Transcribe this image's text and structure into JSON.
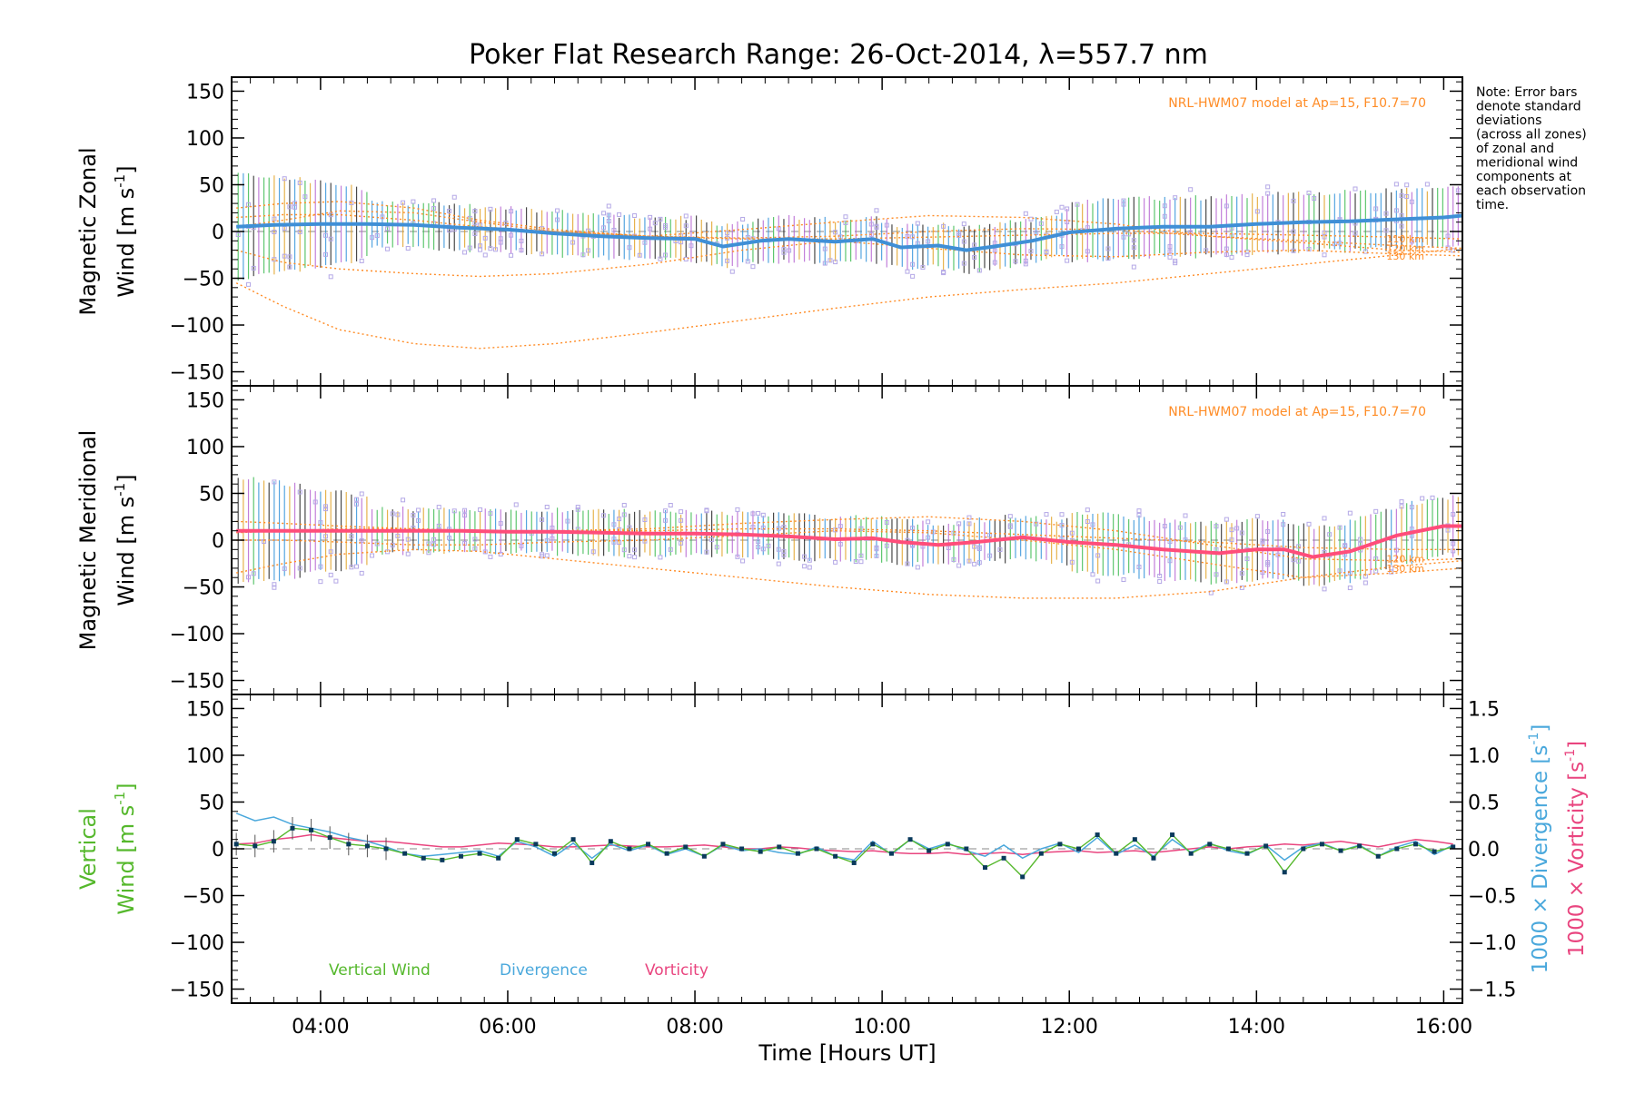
{
  "title_pre": "Poker Flat Research Range: 26-Oct-2014, ",
  "title_lambda": "λ",
  "title_post": "=557.7 nm",
  "note": [
    "Note: Error bars",
    "denote standard",
    "deviations",
    "(across all zones)",
    "of zonal and",
    "meridional wind",
    "components at",
    "each observation",
    "time."
  ],
  "xlabel": "Time [Hours UT]",
  "colors": {
    "zonal": "#3f8fd6",
    "meridional": "#ff4d7a",
    "scatter": "#b4a8e6",
    "model": "#ff8c26",
    "vertical": "#55b82c",
    "divergence": "#4aa8dc",
    "vorticity": "#e9457f",
    "points": "#0a3a5c"
  },
  "chart_data": [
    {
      "type": "line",
      "panel": "zonal",
      "ylabel_line1": "Magnetic Zonal",
      "ylabel_line2": "Wind [m s",
      "ylabel_sup": "-1",
      "ylabel_close": "]",
      "model_label": "NRL-HWM07 model at Ap=15, F10.7=70",
      "xlim": [
        3.05,
        16.2
      ],
      "ylim": [
        -165,
        165
      ],
      "yticks": [
        -150,
        -100,
        -50,
        0,
        50,
        100,
        150
      ],
      "xticks": [
        4,
        6,
        8,
        10,
        12,
        14,
        16
      ],
      "xtick_labels": [
        "04:00",
        "06:00",
        "08:00",
        "10:00",
        "12:00",
        "14:00",
        "16:00"
      ],
      "series": [
        {
          "role": "mean",
          "x": [
            3.1,
            3.5,
            4.0,
            4.5,
            5.0,
            5.5,
            6.0,
            6.5,
            7.0,
            7.5,
            8.0,
            8.3,
            8.7,
            9.0,
            9.5,
            9.9,
            10.2,
            10.6,
            10.9,
            11.2,
            11.6,
            12.0,
            12.5,
            13.0,
            13.5,
            14.0,
            14.5,
            15.0,
            15.5,
            16.0,
            16.2
          ],
          "values": [
            5,
            7,
            8,
            8,
            7,
            4,
            2,
            -2,
            -5,
            -7,
            -8,
            -16,
            -10,
            -8,
            -11,
            -8,
            -17,
            -15,
            -20,
            -16,
            -10,
            -1,
            3,
            5,
            5,
            8,
            10,
            11,
            13,
            15,
            17
          ]
        },
        {
          "role": "model",
          "label": "",
          "x": [
            3.1,
            3.6,
            4.2,
            5.0,
            5.7,
            6.5,
            7.5,
            8.5,
            9.5,
            10.5,
            11.5,
            12.5,
            13.5,
            14.5,
            15.5,
            16.2
          ],
          "values": [
            -55,
            -80,
            -105,
            -120,
            -125,
            -120,
            -108,
            -95,
            -82,
            -70,
            -62,
            -55,
            -45,
            -35,
            -25,
            -18
          ]
        },
        {
          "role": "model",
          "label": "130 km",
          "x": [
            3.1,
            3.6,
            4.2,
            5.0,
            5.7,
            6.5,
            7.5,
            8.5,
            9.5,
            10.5,
            11.5,
            12.5,
            13.5,
            14.5,
            15.5,
            16.2
          ],
          "values": [
            -20,
            -33,
            -40,
            -45,
            -48,
            -45,
            -35,
            -20,
            -10,
            -18,
            -25,
            -27,
            -22,
            -20,
            -24,
            -26
          ]
        },
        {
          "role": "model",
          "label": "",
          "x": [
            3.1,
            3.6,
            4.2,
            5.0,
            5.7,
            6.5,
            7.5,
            8.5,
            9.5,
            10.5,
            11.5,
            12.5,
            13.5,
            14.5,
            15.5,
            16.2
          ],
          "values": [
            5,
            12,
            22,
            20,
            10,
            0,
            -5,
            2,
            10,
            17,
            15,
            8,
            -5,
            -12,
            -20,
            -22
          ]
        },
        {
          "role": "model",
          "label": "120 km",
          "x": [
            3.1,
            3.6,
            4.2,
            5.0,
            5.7,
            6.5,
            7.5,
            8.5,
            9.5,
            10.5,
            11.5,
            12.5,
            13.5,
            14.5,
            15.5,
            16.2
          ],
          "values": [
            25,
            30,
            32,
            25,
            12,
            2,
            -5,
            -7,
            -5,
            0,
            3,
            2,
            -5,
            -10,
            -15,
            -18
          ]
        },
        {
          "role": "model",
          "label": "110 km",
          "x": [
            3.1,
            3.6,
            4.2,
            5.0,
            5.7,
            6.5,
            7.5,
            8.5,
            9.5,
            10.5,
            11.5,
            12.5,
            13.5,
            14.5,
            15.5,
            16.2
          ],
          "values": [
            15,
            18,
            18,
            12,
            5,
            0,
            -5,
            -8,
            -8,
            -6,
            -4,
            -2,
            -2,
            -4,
            -6,
            -8
          ]
        }
      ]
    },
    {
      "type": "line",
      "panel": "meridional",
      "ylabel_line1": "Magnetic Meridional",
      "ylabel_line2": "Wind [m s",
      "ylabel_sup": "-1",
      "ylabel_close": "]",
      "model_label": "NRL-HWM07 model at Ap=15, F10.7=70",
      "xlim": [
        3.05,
        16.2
      ],
      "ylim": [
        -165,
        165
      ],
      "yticks": [
        -150,
        -100,
        -50,
        0,
        50,
        100,
        150
      ],
      "series": [
        {
          "role": "mean",
          "x": [
            3.1,
            3.5,
            4.0,
            4.5,
            5.0,
            5.5,
            6.0,
            6.5,
            7.0,
            7.5,
            8.0,
            8.5,
            9.0,
            9.5,
            9.9,
            10.2,
            10.6,
            11.0,
            11.5,
            12.0,
            12.5,
            13.0,
            13.3,
            13.6,
            14.0,
            14.3,
            14.6,
            15.0,
            15.5,
            16.0,
            16.2
          ],
          "values": [
            10,
            10,
            10,
            10,
            10,
            10,
            9,
            9,
            8,
            7,
            7,
            6,
            4,
            1,
            2,
            -2,
            -5,
            -2,
            3,
            -2,
            -5,
            -10,
            -12,
            -14,
            -10,
            -10,
            -18,
            -12,
            5,
            15,
            15
          ]
        },
        {
          "role": "model",
          "label": "",
          "x": [
            3.1,
            3.6,
            4.2,
            5.0,
            5.7,
            6.5,
            7.5,
            8.5,
            9.5,
            10.5,
            11.5,
            12.5,
            13.5,
            14.5,
            15.5,
            16.2
          ],
          "values": [
            -35,
            -25,
            -15,
            -10,
            -12,
            -20,
            -30,
            -40,
            -50,
            -58,
            -62,
            -62,
            -55,
            -40,
            -28,
            -22
          ]
        },
        {
          "role": "model",
          "label": "130 km",
          "x": [
            3.1,
            3.6,
            4.2,
            5.0,
            5.7,
            6.5,
            7.5,
            8.5,
            9.5,
            10.5,
            11.5,
            12.5,
            13.5,
            14.5,
            15.5,
            16.2
          ],
          "values": [
            0,
            0,
            -2,
            -5,
            -5,
            -2,
            0,
            5,
            10,
            8,
            0,
            -10,
            -25,
            -40,
            -35,
            -30
          ]
        },
        {
          "role": "model",
          "label": "120 km",
          "x": [
            3.1,
            3.6,
            4.2,
            5.0,
            5.7,
            6.5,
            7.5,
            8.5,
            9.5,
            10.5,
            11.5,
            12.5,
            13.5,
            14.5,
            15.5,
            16.2
          ],
          "values": [
            20,
            18,
            15,
            12,
            10,
            10,
            12,
            18,
            22,
            25,
            20,
            10,
            -5,
            -20,
            -22,
            -20
          ]
        },
        {
          "role": "model",
          "label": "",
          "x": [
            3.1,
            3.6,
            4.2,
            5.0,
            5.7,
            6.5,
            7.5,
            8.5,
            9.5,
            10.5,
            11.5,
            12.5,
            13.5,
            14.5,
            15.5,
            16.2
          ],
          "values": [
            8,
            10,
            12,
            12,
            10,
            10,
            10,
            12,
            12,
            10,
            6,
            2,
            -2,
            -8,
            -10,
            -10
          ]
        }
      ]
    },
    {
      "type": "line",
      "panel": "vertical",
      "ylabel_line1": "Vertical",
      "ylabel_line2": "Wind [m s",
      "ylabel_sup": "-1",
      "ylabel_close": "]",
      "y2label_div_pre": "1000 × Divergence [s",
      "y2label_vort_pre": "1000 × Vorticity [s",
      "y2label_sup": "-1",
      "y2label_close": "]",
      "ylim": [
        -165,
        165
      ],
      "yticks": [
        -150,
        -100,
        -50,
        0,
        50,
        100,
        150
      ],
      "y2lim": [
        -1.65,
        1.65
      ],
      "y2ticks": [
        -1.5,
        -1.0,
        -0.5,
        0.0,
        0.5,
        1.0,
        1.5
      ],
      "y2tick_labels": [
        "−1.5",
        "−1.0",
        "−0.5",
        "0.0",
        "0.5",
        "1.0",
        "1.5"
      ],
      "legend": [
        "Vertical Wind",
        "Divergence",
        "Vorticity"
      ],
      "series": [
        {
          "name": "Vertical Wind",
          "x": [
            3.1,
            3.3,
            3.5,
            3.7,
            3.9,
            4.1,
            4.3,
            4.5,
            4.7,
            4.9,
            5.1,
            5.3,
            5.5,
            5.7,
            5.9,
            6.1,
            6.3,
            6.5,
            6.7,
            6.9,
            7.1,
            7.3,
            7.5,
            7.7,
            7.9,
            8.1,
            8.3,
            8.5,
            8.7,
            8.9,
            9.1,
            9.3,
            9.5,
            9.7,
            9.9,
            10.1,
            10.3,
            10.5,
            10.7,
            10.9,
            11.1,
            11.3,
            11.5,
            11.7,
            11.9,
            12.1,
            12.3,
            12.5,
            12.7,
            12.9,
            13.1,
            13.3,
            13.5,
            13.7,
            13.9,
            14.1,
            14.3,
            14.5,
            14.7,
            14.9,
            15.1,
            15.3,
            15.5,
            15.7,
            15.9,
            16.1
          ],
          "values": [
            5,
            3,
            8,
            22,
            20,
            12,
            5,
            3,
            0,
            -5,
            -10,
            -12,
            -8,
            -5,
            -10,
            10,
            5,
            -5,
            10,
            -15,
            8,
            0,
            5,
            -5,
            2,
            -8,
            5,
            0,
            -3,
            2,
            -5,
            0,
            -8,
            -15,
            5,
            -5,
            10,
            -2,
            5,
            0,
            -20,
            -10,
            -30,
            -5,
            5,
            0,
            15,
            -5,
            10,
            -10,
            15,
            -5,
            5,
            0,
            -5,
            3,
            -25,
            0,
            5,
            -2,
            3,
            -8,
            0,
            5,
            -3,
            2
          ]
        },
        {
          "name": "Divergence",
          "x": [
            3.1,
            3.3,
            3.5,
            3.7,
            3.9,
            4.1,
            4.3,
            4.5,
            4.7,
            4.9,
            5.1,
            5.3,
            5.5,
            5.7,
            5.9,
            6.1,
            6.3,
            6.5,
            6.7,
            6.9,
            7.1,
            7.3,
            7.5,
            7.7,
            7.9,
            8.1,
            8.3,
            8.5,
            8.7,
            8.9,
            9.1,
            9.3,
            9.5,
            9.7,
            9.9,
            10.1,
            10.3,
            10.5,
            10.7,
            10.9,
            11.1,
            11.3,
            11.5,
            11.7,
            11.9,
            12.1,
            12.3,
            12.5,
            12.7,
            12.9,
            13.1,
            13.3,
            13.5,
            13.7,
            13.9,
            14.1,
            14.3,
            14.5,
            14.7,
            14.9,
            15.1,
            15.3,
            15.5,
            15.7,
            15.9,
            16.1
          ],
          "values": [
            0.38,
            0.3,
            0.34,
            0.26,
            0.22,
            0.18,
            0.12,
            0.08,
            0.02,
            -0.05,
            -0.08,
            -0.06,
            -0.04,
            -0.02,
            -0.08,
            0.08,
            0.02,
            -0.08,
            0.06,
            -0.1,
            0.05,
            -0.02,
            0.04,
            -0.06,
            0.0,
            -0.08,
            0.04,
            -0.02,
            0.0,
            -0.04,
            -0.06,
            0.02,
            -0.08,
            -0.12,
            0.08,
            -0.06,
            0.1,
            0.0,
            0.06,
            -0.02,
            -0.08,
            0.04,
            -0.1,
            0.0,
            0.06,
            -0.04,
            0.12,
            -0.06,
            0.04,
            -0.08,
            0.1,
            -0.04,
            0.06,
            -0.02,
            -0.06,
            0.04,
            -0.12,
            0.02,
            0.06,
            -0.02,
            0.04,
            -0.08,
            0.02,
            0.08,
            -0.06,
            0.04
          ]
        },
        {
          "name": "Vorticity",
          "x": [
            3.1,
            3.3,
            3.5,
            3.7,
            3.9,
            4.1,
            4.3,
            4.5,
            4.7,
            4.9,
            5.1,
            5.3,
            5.5,
            5.7,
            5.9,
            6.1,
            6.3,
            6.5,
            6.7,
            6.9,
            7.1,
            7.3,
            7.5,
            7.7,
            7.9,
            8.1,
            8.3,
            8.5,
            8.7,
            8.9,
            9.1,
            9.3,
            9.5,
            9.7,
            9.9,
            10.1,
            10.3,
            10.5,
            10.7,
            10.9,
            11.1,
            11.3,
            11.5,
            11.7,
            11.9,
            12.1,
            12.3,
            12.5,
            12.7,
            12.9,
            13.1,
            13.3,
            13.5,
            13.7,
            13.9,
            14.1,
            14.3,
            14.5,
            14.7,
            14.9,
            15.1,
            15.3,
            15.5,
            15.7,
            15.9,
            16.1
          ],
          "values": [
            0.05,
            0.06,
            0.1,
            0.12,
            0.15,
            0.12,
            0.1,
            0.08,
            0.08,
            0.06,
            0.04,
            0.02,
            0.02,
            0.04,
            0.06,
            0.05,
            0.04,
            0.02,
            0.02,
            0.03,
            0.04,
            0.03,
            0.02,
            0.02,
            0.03,
            0.04,
            0.02,
            0.0,
            0.0,
            0.02,
            0.01,
            -0.01,
            -0.02,
            -0.03,
            -0.02,
            -0.04,
            -0.05,
            -0.05,
            -0.04,
            -0.06,
            -0.05,
            -0.04,
            -0.06,
            -0.04,
            -0.03,
            -0.02,
            -0.04,
            -0.03,
            -0.02,
            -0.04,
            -0.02,
            0.0,
            0.02,
            0.0,
            0.02,
            0.03,
            0.05,
            0.04,
            0.06,
            0.08,
            0.05,
            0.02,
            0.06,
            0.1,
            0.08,
            0.05
          ]
        }
      ]
    }
  ]
}
